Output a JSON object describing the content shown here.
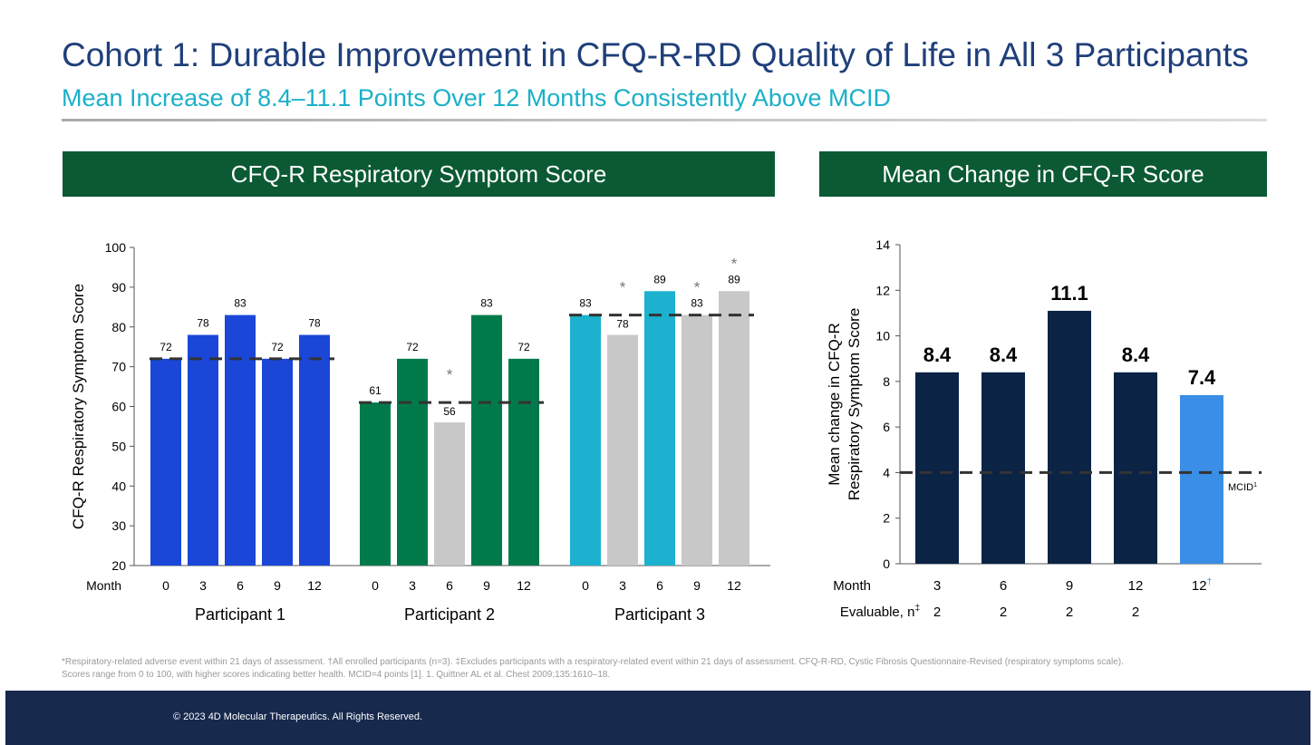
{
  "title": "Cohort 1:  Durable Improvement in CFQ-R-RD Quality of Life in All 3 Participants",
  "subtitle": "Mean Increase of 8.4–11.1 Points Over 12 Months Consistently Above MCID",
  "footnote_line1": "*Respiratory-related adverse event within 21 days of assessment. †All enrolled participants (n=3). ‡Excludes participants with a respiratory-related event within 21 days of assessment. CFQ-R-RD, Cystic Fibrosis Questionnaire-Revised (respiratory symptoms scale).",
  "footnote_line2": "Scores range from 0 to 100, with higher scores indicating better health. MCID=4 points [1]. 1. Quittner AL et al. Chest 2009;135:1610–18.",
  "copyright": "© 2023 4D Molecular Therapeutics. All Rights Reserved.",
  "chart_data": [
    {
      "type": "bar",
      "title": "CFQ-R Respiratory Symptom Score",
      "ylabel": "CFQ-R Respiratory Symptom Score",
      "xlabel": "Month",
      "ylim": [
        20,
        100
      ],
      "yticks": [
        20,
        30,
        40,
        50,
        60,
        70,
        80,
        90,
        100
      ],
      "groups": [
        {
          "name": "Participant 1",
          "color": "#1a47d8",
          "baseline": 72,
          "months": [
            "0",
            "3",
            "6",
            "9",
            "12"
          ],
          "values": [
            72,
            78,
            83,
            72,
            78
          ],
          "adverse_event": [
            false,
            false,
            false,
            false,
            false
          ]
        },
        {
          "name": "Participant 2",
          "color": "#007a4a",
          "baseline": 61,
          "months": [
            "0",
            "3",
            "6",
            "9",
            "12"
          ],
          "values": [
            61,
            72,
            56,
            83,
            72
          ],
          "adverse_event": [
            false,
            false,
            true,
            false,
            false
          ]
        },
        {
          "name": "Participant 3",
          "color": "#1cb2cf",
          "baseline": 83,
          "months": [
            "0",
            "3",
            "6",
            "9",
            "12"
          ],
          "values": [
            83,
            78,
            89,
            83,
            89
          ],
          "adverse_event": [
            false,
            true,
            false,
            true,
            true
          ]
        }
      ],
      "adverse_color": "#c8c8c8",
      "marker": "*"
    },
    {
      "type": "bar",
      "title": "Mean Change in CFQ-R Score",
      "ylabel": "Mean change in CFQ-R Respiratory Symptom Score",
      "xlabel": "Month",
      "ylim": [
        0,
        14
      ],
      "yticks": [
        0,
        2,
        4,
        6,
        8,
        10,
        12,
        14
      ],
      "categories": [
        "3",
        "6",
        "9",
        "12",
        "12"
      ],
      "category_marks": [
        "",
        "",
        "",
        "",
        "†"
      ],
      "values": [
        8.4,
        8.4,
        11.1,
        8.4,
        7.4
      ],
      "colors": [
        "#0b2345",
        "#0b2345",
        "#0b2345",
        "#0b2345",
        "#3a8ee6"
      ],
      "evaluable_label": "Evaluable, n",
      "evaluable_mark": "‡",
      "evaluable": [
        "2",
        "2",
        "2",
        "2",
        ""
      ],
      "mcid": 4,
      "mcid_label": "MCID",
      "mcid_mark": "1"
    }
  ]
}
